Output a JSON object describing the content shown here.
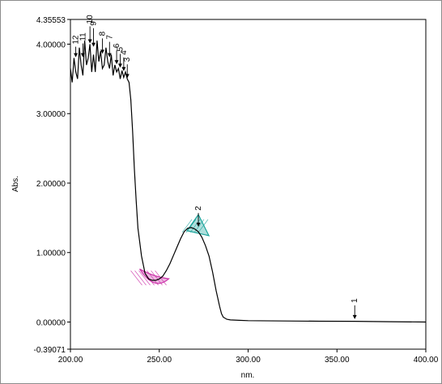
{
  "chart_data": {
    "type": "line",
    "xlabel": "nm.",
    "ylabel": "Abs.",
    "xlim": [
      200.0,
      400.0
    ],
    "ylim": [
      -0.39071,
      4.35553
    ],
    "x_ticks": [
      "200.00",
      "250.00",
      "300.00",
      "350.00",
      "400.00"
    ],
    "y_ticks": [
      {
        "value": -0.39071,
        "label": "-0.39071"
      },
      {
        "value": 0.0,
        "label": "0.00000"
      },
      {
        "value": 1.0,
        "label": "1.00000"
      },
      {
        "value": 2.0,
        "label": "2.00000"
      },
      {
        "value": 3.0,
        "label": "3.00000"
      },
      {
        "value": 4.0,
        "label": "4.00000"
      },
      {
        "value": 4.35553,
        "label": "4.35553"
      }
    ],
    "series": [
      {
        "color": "#000000",
        "x": [
          200,
          201,
          202,
          203,
          204,
          205,
          206,
          207,
          208,
          209,
          210,
          211,
          212,
          213,
          214,
          215,
          216,
          217,
          218,
          219,
          220,
          221,
          222,
          223,
          224,
          225,
          226,
          227,
          228,
          229,
          230,
          231,
          232,
          233,
          234,
          235,
          236,
          237,
          238,
          240,
          242,
          244,
          246,
          248,
          250,
          252,
          254,
          256,
          258,
          260,
          262,
          264,
          266,
          268,
          270,
          272,
          274,
          276,
          278,
          280,
          282,
          284,
          285,
          286,
          288,
          290,
          295,
          300,
          320,
          340,
          360,
          380,
          400
        ],
        "y": [
          3.65,
          3.45,
          3.8,
          3.6,
          3.5,
          3.95,
          3.7,
          3.55,
          4.05,
          3.7,
          3.8,
          4.0,
          3.6,
          3.85,
          3.6,
          4.05,
          3.75,
          3.9,
          3.65,
          3.7,
          3.95,
          3.75,
          3.65,
          3.85,
          3.55,
          3.7,
          3.6,
          3.65,
          3.5,
          3.62,
          3.52,
          3.6,
          3.5,
          3.45,
          3.2,
          2.75,
          2.2,
          1.75,
          1.35,
          0.95,
          0.7,
          0.62,
          0.6,
          0.6,
          0.62,
          0.66,
          0.74,
          0.84,
          0.96,
          1.08,
          1.2,
          1.3,
          1.35,
          1.36,
          1.34,
          1.3,
          1.22,
          1.1,
          0.95,
          0.72,
          0.45,
          0.22,
          0.12,
          0.07,
          0.04,
          0.03,
          0.025,
          0.02,
          0.015,
          0.012,
          0.01,
          0.005,
          0.0
        ]
      }
    ],
    "peak_markers": [
      {
        "label": "1",
        "x": 360,
        "y": 0.03
      },
      {
        "label": "2",
        "x": 272,
        "y": 1.36
      },
      {
        "label": "3",
        "x": 232,
        "y": 3.5
      },
      {
        "label": "4",
        "x": 230,
        "y": 3.6
      },
      {
        "label": "5",
        "x": 228,
        "y": 3.65
      },
      {
        "label": "6",
        "x": 226,
        "y": 3.7
      },
      {
        "label": "7",
        "x": 222,
        "y": 3.8
      },
      {
        "label": "8",
        "x": 218,
        "y": 3.85
      },
      {
        "label": "9",
        "x": 213,
        "y": 3.95
      },
      {
        "label": "10",
        "x": 211,
        "y": 4.0
      },
      {
        "label": "11",
        "x": 207,
        "y": 3.8
      },
      {
        "label": "12",
        "x": 203,
        "y": 3.8
      }
    ],
    "valley_marker": {
      "x": 249,
      "y": 0.6,
      "color": "#cc33aa"
    },
    "peak2_fill_color": "#1aa39a",
    "grid": false
  }
}
